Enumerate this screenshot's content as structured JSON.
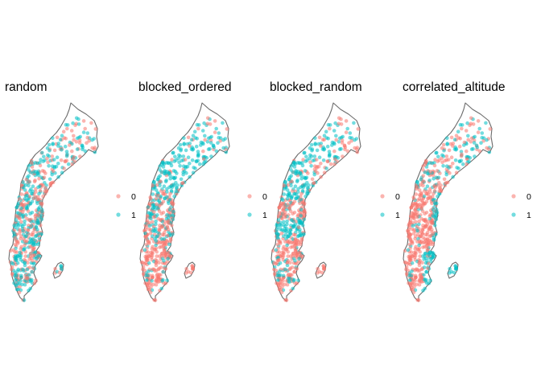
{
  "figure": {
    "panels": [
      {
        "title": "random",
        "pattern": "random"
      },
      {
        "title": "blocked_ordered",
        "pattern": "blocked_ordered"
      },
      {
        "title": "blocked_random",
        "pattern": "blocked_random"
      },
      {
        "title": "correlated_altitude",
        "pattern": "correlated_altitude"
      }
    ],
    "legend": {
      "items": [
        {
          "label": "0",
          "color": "#F8766D"
        },
        {
          "label": "1",
          "color": "#00BFC4"
        }
      ]
    },
    "map_region": "Sweden",
    "points_per_panel_approx": 600,
    "point_opacity": 0.55
  }
}
